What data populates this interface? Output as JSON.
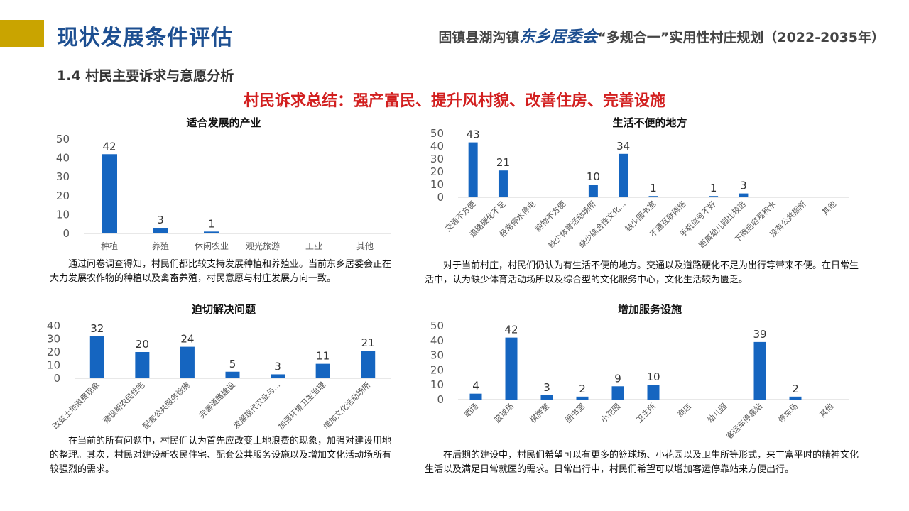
{
  "header": {
    "page_title": "现状发展条件评估",
    "subtitle_prefix": "固镇县湖沟镇",
    "subtitle_brand": "东乡居委会",
    "subtitle_suffix": "“多规合一”实用性村庄规划（2022-2035年）",
    "gold_color": "#c9a400",
    "title_color": "#1d4f91"
  },
  "section": {
    "title": "1.4  村民主要诉求与意愿分析",
    "summary": "村民诉求总结：强产富民、提升风村貌、改善住房、完善设施"
  },
  "chart_data": [
    {
      "type": "bar",
      "title": "适合发展的产业",
      "categories": [
        "种植",
        "养殖",
        "休闲农业",
        "观光旅游",
        "工业",
        "其他"
      ],
      "values": [
        42,
        3,
        1,
        0,
        0,
        0
      ],
      "labels": [
        "42",
        "3",
        "1",
        "",
        "",
        ""
      ],
      "ylim": [
        0,
        50
      ],
      "yticks": [
        0,
        10,
        20,
        30,
        40,
        50
      ],
      "bar_color": "#1565c0",
      "grid": false,
      "xlabel": "",
      "ylabel": ""
    },
    {
      "type": "bar",
      "title": "生活不便的地方",
      "categories": [
        "交通不方便",
        "道路硬化不足",
        "经常停水停电",
        "购物不方便",
        "缺少体育活动场所",
        "缺少综合性文化...",
        "缺少图书室",
        "不通互联网络",
        "手机信号不好",
        "距离幼儿园比较远",
        "下雨后容易积水",
        "没有公共厕所",
        "其他"
      ],
      "values": [
        43,
        21,
        0,
        0,
        10,
        34,
        1,
        0,
        1,
        3,
        0,
        0,
        0
      ],
      "labels": [
        "43",
        "21",
        "",
        "",
        "10",
        "34",
        "1",
        "",
        "1",
        "3",
        "",
        "",
        ""
      ],
      "ylim": [
        0,
        50
      ],
      "yticks": [
        0,
        10,
        20,
        30,
        40,
        50
      ],
      "bar_color": "#1565c0",
      "grid": false,
      "xlabel": "",
      "ylabel": ""
    },
    {
      "type": "bar",
      "title": "迫切解决问题",
      "categories": [
        "改变土地浪费现象",
        "建设新农民住宅",
        "配套公共服务设施",
        "完善道路建设",
        "发展现代农业与...",
        "加强环境卫生治理",
        "增加文化活动场所"
      ],
      "values": [
        32,
        20,
        24,
        5,
        3,
        11,
        21
      ],
      "labels": [
        "32",
        "20",
        "24",
        "5",
        "3",
        "11",
        "21"
      ],
      "ylim": [
        0,
        40
      ],
      "yticks": [
        0,
        10,
        20,
        30,
        40
      ],
      "bar_color": "#1565c0",
      "grid": false,
      "xlabel": "",
      "ylabel": ""
    },
    {
      "type": "bar",
      "title": "增加服务设施",
      "categories": [
        "晒场",
        "篮球场",
        "棋牌室",
        "图书室",
        "小花园",
        "卫生所",
        "商店",
        "幼儿园",
        "客运车停靠站",
        "停车场",
        "其他"
      ],
      "values": [
        4,
        42,
        3,
        2,
        9,
        10,
        0,
        0,
        39,
        2,
        0
      ],
      "labels": [
        "4",
        "42",
        "3",
        "2",
        "9",
        "10",
        "",
        "",
        "39",
        "2",
        ""
      ],
      "ylim": [
        0,
        50
      ],
      "yticks": [
        0,
        10,
        20,
        30,
        40,
        50
      ],
      "bar_color": "#1565c0",
      "grid": false,
      "xlabel": "",
      "ylabel": ""
    }
  ],
  "descriptions": [
    "通过问卷调查得知，村民们都比较支持发展种植和养殖业。当前东乡居委会正在大力发展农作物的种植以及禽畜养殖，村民意愿与村庄发展方向一致。",
    "对于当前村庄，村民们仍认为有生活不便的地方。交通以及道路硬化不足为出行等带来不便。在日常生活中，认为缺少体育活动场所以及综合型的文化服务中心，文化生活较为匮乏。",
    "在当前的所有问题中，村民们认为首先应改变土地浪费的现象，加强对建设用地的整理。其次，村民对建设新农民住宅、配套公共服务设施以及增加文化活动场所有较强烈的需求。",
    "在后期的建设中，村民们希望可以有更多的篮球场、小花园以及卫生所等形式，来丰富平时的精神文化生活以及满足日常就医的需求。日常出行中，村民们希望可以增加客运停靠站来方便出行。"
  ]
}
